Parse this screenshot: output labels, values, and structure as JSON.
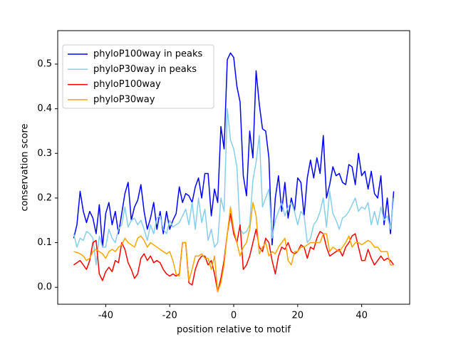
{
  "chart_data": {
    "type": "line",
    "xlabel": "position relative to motif",
    "ylabel": "conservation score",
    "x": [
      -50,
      -49,
      -48,
      -47,
      -46,
      -45,
      -44,
      -43,
      -42,
      -41,
      -40,
      -39,
      -38,
      -37,
      -36,
      -35,
      -34,
      -33,
      -32,
      -31,
      -30,
      -29,
      -28,
      -27,
      -26,
      -25,
      -24,
      -23,
      -22,
      -21,
      -20,
      -19,
      -18,
      -17,
      -16,
      -15,
      -14,
      -13,
      -12,
      -11,
      -10,
      -9,
      -8,
      -7,
      -6,
      -5,
      -4,
      -3,
      -2,
      -1,
      0,
      1,
      2,
      3,
      4,
      5,
      6,
      7,
      8,
      9,
      10,
      11,
      12,
      13,
      14,
      15,
      16,
      17,
      18,
      19,
      20,
      21,
      22,
      23,
      24,
      25,
      26,
      27,
      28,
      29,
      30,
      31,
      32,
      33,
      34,
      35,
      36,
      37,
      38,
      39,
      40,
      41,
      42,
      43,
      44,
      45,
      46,
      47,
      48,
      49,
      50
    ],
    "series": [
      {
        "name": "phyloP100way in peaks",
        "color": "#0000ff",
        "values": [
          0.11,
          0.14,
          0.215,
          0.17,
          0.145,
          0.17,
          0.155,
          0.12,
          0.185,
          0.09,
          0.165,
          0.19,
          0.14,
          0.17,
          0.12,
          0.165,
          0.21,
          0.235,
          0.15,
          0.18,
          0.195,
          0.23,
          0.17,
          0.13,
          0.155,
          0.19,
          0.13,
          0.17,
          0.12,
          0.17,
          0.13,
          0.15,
          0.165,
          0.225,
          0.19,
          0.21,
          0.205,
          0.19,
          0.225,
          0.245,
          0.2,
          0.255,
          0.255,
          0.16,
          0.22,
          0.19,
          0.36,
          0.31,
          0.51,
          0.525,
          0.515,
          0.45,
          0.415,
          0.25,
          0.205,
          0.35,
          0.29,
          0.485,
          0.41,
          0.355,
          0.35,
          0.29,
          0.095,
          0.2,
          0.25,
          0.17,
          0.235,
          0.155,
          0.2,
          0.17,
          0.245,
          0.235,
          0.16,
          0.245,
          0.285,
          0.245,
          0.29,
          0.255,
          0.34,
          0.2,
          0.23,
          0.27,
          0.25,
          0.255,
          0.235,
          0.23,
          0.275,
          0.27,
          0.23,
          0.3,
          0.25,
          0.26,
          0.22,
          0.26,
          0.21,
          0.2,
          0.25,
          0.14,
          0.2,
          0.12,
          0.215
        ]
      },
      {
        "name": "phyloP30way in peaks",
        "color": "#87ceeb",
        "values": [
          0.12,
          0.09,
          0.11,
          0.105,
          0.125,
          0.12,
          0.11,
          0.05,
          0.115,
          0.09,
          0.09,
          0.13,
          0.11,
          0.1,
          0.13,
          0.14,
          0.18,
          0.135,
          0.15,
          0.155,
          0.14,
          0.15,
          0.13,
          0.105,
          0.14,
          0.12,
          0.155,
          0.16,
          0.13,
          0.12,
          0.15,
          0.135,
          0.14,
          0.145,
          0.16,
          0.175,
          0.14,
          0.19,
          0.13,
          0.2,
          0.145,
          0.175,
          0.105,
          0.13,
          0.09,
          0.1,
          0.2,
          0.17,
          0.4,
          0.33,
          0.31,
          0.27,
          0.13,
          0.12,
          0.125,
          0.14,
          0.24,
          0.28,
          0.34,
          0.18,
          0.2,
          0.22,
          0.11,
          0.15,
          0.17,
          0.19,
          0.16,
          0.18,
          0.19,
          0.17,
          0.14,
          0.17,
          0.16,
          0.1,
          0.11,
          0.14,
          0.15,
          0.17,
          0.2,
          0.135,
          0.215,
          0.165,
          0.15,
          0.13,
          0.155,
          0.16,
          0.17,
          0.185,
          0.2,
          0.17,
          0.18,
          0.175,
          0.19,
          0.14,
          0.17,
          0.14,
          0.18,
          0.15,
          0.16,
          0.13,
          0.2
        ]
      },
      {
        "name": "phyloP100way",
        "color": "#ff0000",
        "values": [
          0.05,
          0.055,
          0.06,
          0.05,
          0.04,
          0.06,
          0.1,
          0.105,
          0.03,
          0.015,
          0.035,
          0.045,
          0.035,
          0.06,
          0.055,
          0.1,
          0.085,
          0.055,
          0.04,
          0.02,
          0.03,
          0.065,
          0.075,
          0.06,
          0.07,
          0.055,
          0.06,
          0.055,
          0.04,
          0.03,
          0.025,
          0.03,
          0.025,
          0.03,
          0.1,
          0.1,
          0.01,
          0.005,
          0.04,
          0.06,
          0.07,
          0.07,
          0.05,
          0.06,
          0.03,
          -0.01,
          0.02,
          0.06,
          0.12,
          0.165,
          0.12,
          0.1,
          0.14,
          0.04,
          0.05,
          0.07,
          0.1,
          0.13,
          0.09,
          0.08,
          0.11,
          0.1,
          0.06,
          0.03,
          0.07,
          0.09,
          0.085,
          0.1,
          0.08,
          0.075,
          0.08,
          0.095,
          0.09,
          0.065,
          0.09,
          0.085,
          0.11,
          0.125,
          0.12,
          0.09,
          0.07,
          0.075,
          0.08,
          0.085,
          0.07,
          0.09,
          0.1,
          0.115,
          0.12,
          0.09,
          0.06,
          0.06,
          0.085,
          0.065,
          0.05,
          0.06,
          0.07,
          0.06,
          0.065,
          0.06,
          0.05
        ]
      },
      {
        "name": "phyloP30way",
        "color": "#ffa500",
        "values": [
          0.08,
          0.078,
          0.075,
          0.07,
          0.06,
          0.065,
          0.08,
          0.085,
          0.08,
          0.075,
          0.065,
          0.08,
          0.085,
          0.08,
          0.09,
          0.095,
          0.11,
          0.1,
          0.095,
          0.09,
          0.11,
          0.115,
          0.105,
          0.09,
          0.1,
          0.095,
          0.09,
          0.085,
          0.08,
          0.075,
          0.08,
          0.06,
          0.03,
          0.025,
          0.1,
          0.1,
          0.015,
          0.04,
          0.07,
          0.07,
          0.075,
          0.065,
          0.065,
          0.04,
          0.07,
          -0.01,
          0.01,
          0.05,
          0.12,
          0.18,
          0.13,
          0.1,
          0.07,
          0.09,
          0.1,
          0.13,
          0.19,
          0.16,
          0.075,
          0.09,
          0.1,
          0.07,
          0.08,
          0.075,
          0.09,
          0.1,
          0.11,
          0.06,
          0.05,
          0.08,
          0.08,
          0.09,
          0.09,
          0.095,
          0.1,
          0.1,
          0.1,
          0.1,
          0.12,
          0.12,
          0.08,
          0.09,
          0.085,
          0.08,
          0.09,
          0.1,
          0.115,
          0.09,
          0.1,
          0.1,
          0.095,
          0.1,
          0.105,
          0.1,
          0.09,
          0.09,
          0.08,
          0.08,
          0.08,
          0.05,
          0.05
        ]
      }
    ],
    "xlim": [
      -55,
      55
    ],
    "ylim": [
      -0.038,
      0.575
    ],
    "xticks": [
      -40,
      -20,
      0,
      20,
      40
    ],
    "yticks": [
      {
        "value": 0,
        "label": "0.0"
      },
      0.1,
      0.2,
      0.3,
      0.4,
      0.5
    ],
    "legend": "upper left"
  }
}
